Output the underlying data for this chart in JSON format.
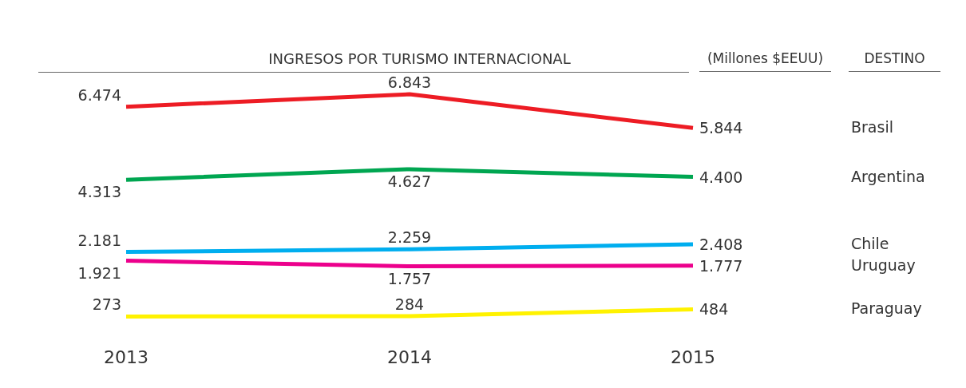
{
  "chart_data": {
    "type": "line",
    "title": "INGRESOS POR TURISMO INTERNACIONAL",
    "subtitle": "(Millones $EEUU)",
    "legend_title": "DESTINO",
    "categories": [
      "2013",
      "2014",
      "2015"
    ],
    "grid": false,
    "marker": "none",
    "line_style": "solid",
    "series": [
      {
        "name": "Brasil",
        "color": "#ed1c24",
        "values": [
          6474,
          6843,
          5844
        ],
        "value_labels": [
          "6.474",
          "6.843",
          "5.844"
        ]
      },
      {
        "name": "Argentina",
        "color": "#00a651",
        "values": [
          4313,
          4627,
          4400
        ],
        "value_labels": [
          "4.313",
          "4.627",
          "4.400"
        ]
      },
      {
        "name": "Chile",
        "color": "#00aeef",
        "values": [
          2181,
          2259,
          2408
        ],
        "value_labels": [
          "2.181",
          "2.259",
          "2.408"
        ]
      },
      {
        "name": "Uruguay",
        "color": "#ec008c",
        "values": [
          1921,
          1757,
          1777
        ],
        "value_labels": [
          "1.921",
          "1.757",
          "1.777"
        ]
      },
      {
        "name": "Paraguay",
        "color": "#fff200",
        "values": [
          273,
          284,
          484
        ],
        "value_labels": [
          "273",
          "284",
          "484"
        ]
      }
    ]
  }
}
